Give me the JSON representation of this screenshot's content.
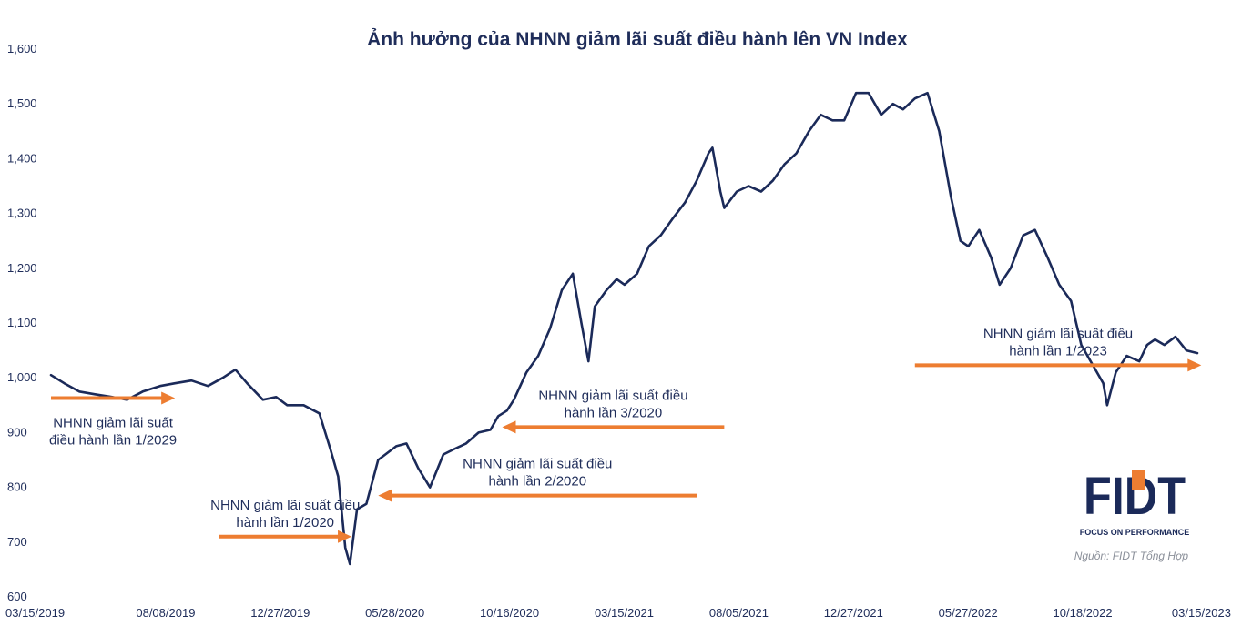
{
  "chart_data": {
    "type": "line",
    "title": "Ảnh hưởng của NHNN giảm lãi suất điều hành lên VN Index",
    "xlabel": "",
    "ylabel": "",
    "ylim": [
      600,
      1600
    ],
    "y_ticks": [
      "1,600",
      "1,500",
      "1,400",
      "1,300",
      "1,200",
      "1,100",
      "1,000",
      "900",
      "800",
      "700",
      "600"
    ],
    "y_tick_values": [
      1600,
      1500,
      1400,
      1300,
      1200,
      1100,
      1000,
      900,
      800,
      700,
      600
    ],
    "x_ticks": [
      "03/15/2019",
      "08/08/2019",
      "12/27/2019",
      "05/28/2020",
      "10/16/2020",
      "03/15/2021",
      "08/05/2021",
      "12/27/2021",
      "05/27/2022",
      "10/18/2022",
      "03/15/2023"
    ],
    "x_range": [
      "03/15/2019",
      "03/15/2023"
    ],
    "grid": false,
    "series": [
      {
        "color": "#1b2a59",
        "x": [
          "2019-03-15",
          "2019-04-01",
          "2019-04-20",
          "2019-05-10",
          "2019-06-01",
          "2019-06-20",
          "2019-07-10",
          "2019-08-01",
          "2019-08-20",
          "2019-09-10",
          "2019-10-01",
          "2019-10-20",
          "2019-11-05",
          "2019-11-20",
          "2019-12-10",
          "2019-12-27",
          "2020-01-10",
          "2020-01-31",
          "2020-02-20",
          "2020-03-05",
          "2020-03-15",
          "2020-03-24",
          "2020-03-30",
          "2020-04-08",
          "2020-04-20",
          "2020-05-05",
          "2020-05-28",
          "2020-06-10",
          "2020-06-25",
          "2020-07-10",
          "2020-07-27",
          "2020-08-10",
          "2020-08-25",
          "2020-09-10",
          "2020-09-25",
          "2020-10-05",
          "2020-10-16",
          "2020-10-25",
          "2020-11-10",
          "2020-11-25",
          "2020-12-10",
          "2020-12-25",
          "2021-01-08",
          "2021-01-19",
          "2021-01-28",
          "2021-02-05",
          "2021-02-20",
          "2021-03-05",
          "2021-03-15",
          "2021-03-31",
          "2021-04-15",
          "2021-04-30",
          "2021-05-15",
          "2021-05-31",
          "2021-06-15",
          "2021-06-30",
          "2021-07-05",
          "2021-07-15",
          "2021-07-20",
          "2021-08-05",
          "2021-08-20",
          "2021-09-05",
          "2021-09-20",
          "2021-10-05",
          "2021-10-20",
          "2021-11-05",
          "2021-11-20",
          "2021-12-05",
          "2021-12-20",
          "2022-01-04",
          "2022-01-20",
          "2022-02-05",
          "2022-02-20",
          "2022-03-05",
          "2022-03-20",
          "2022-04-05",
          "2022-04-20",
          "2022-05-05",
          "2022-05-17",
          "2022-05-27",
          "2022-06-10",
          "2022-06-25",
          "2022-07-06",
          "2022-07-20",
          "2022-08-05",
          "2022-08-20",
          "2022-09-05",
          "2022-09-20",
          "2022-10-05",
          "2022-10-18",
          "2022-10-30",
          "2022-11-15",
          "2022-11-20",
          "2022-12-01",
          "2022-12-15",
          "2022-12-31",
          "2023-01-10",
          "2023-01-20",
          "2023-02-01",
          "2023-02-15",
          "2023-03-01",
          "2023-03-15"
        ],
        "values": [
          1005,
          990,
          975,
          970,
          965,
          960,
          975,
          985,
          990,
          995,
          985,
          1000,
          1015,
          990,
          960,
          965,
          950,
          950,
          935,
          870,
          820,
          690,
          660,
          760,
          770,
          850,
          875,
          880,
          835,
          800,
          860,
          870,
          880,
          900,
          905,
          930,
          940,
          960,
          1010,
          1040,
          1090,
          1160,
          1190,
          1100,
          1030,
          1130,
          1160,
          1180,
          1170,
          1190,
          1240,
          1260,
          1290,
          1320,
          1360,
          1410,
          1420,
          1340,
          1310,
          1340,
          1350,
          1340,
          1360,
          1390,
          1410,
          1450,
          1480,
          1470,
          1470,
          1520,
          1520,
          1480,
          1500,
          1490,
          1510,
          1520,
          1450,
          1330,
          1250,
          1240,
          1270,
          1220,
          1170,
          1200,
          1260,
          1270,
          1220,
          1170,
          1140,
          1060,
          1030,
          990,
          950,
          1010,
          1040,
          1030,
          1060,
          1070,
          1060,
          1075,
          1050,
          1045
        ]
      }
    ],
    "annotations": [
      {
        "line1": "NHNN giảm lãi suất",
        "line2": "điều hành lần 1/2029",
        "from": "2019-03-15",
        "to": "2019-08-20",
        "y": 963
      },
      {
        "line1": "NHNN giảm lãi suất điều",
        "line2": "hành lần 1/2020",
        "from": "2019-10-15",
        "to": "2020-04-01",
        "y": 710
      },
      {
        "line1": "NHNN giảm lãi suất điều",
        "line2": "hành lần 2/2020",
        "from": "2021-06-15",
        "to": "2020-05-05",
        "y": 785
      },
      {
        "line1": "NHNN giảm lãi suất điều",
        "line2": "hành lần 3/2020",
        "from": "2021-07-20",
        "to": "2020-10-10",
        "y": 910
      },
      {
        "line1": "NHNN giảm lãi suất điều",
        "line2": "hành lần 1/2023",
        "from": "2022-03-20",
        "to": "2023-03-20",
        "y": 1023
      }
    ],
    "arrow_color": "#ed7d31",
    "line_color": "#1b2a59"
  },
  "logo": {
    "text": "FIDT",
    "tagline": "FOCUS ON PERFORMANCE",
    "accent_color": "#ed7d31",
    "brand_color": "#1b2a59"
  },
  "source": "Nguồn: FIDT Tổng Hợp"
}
